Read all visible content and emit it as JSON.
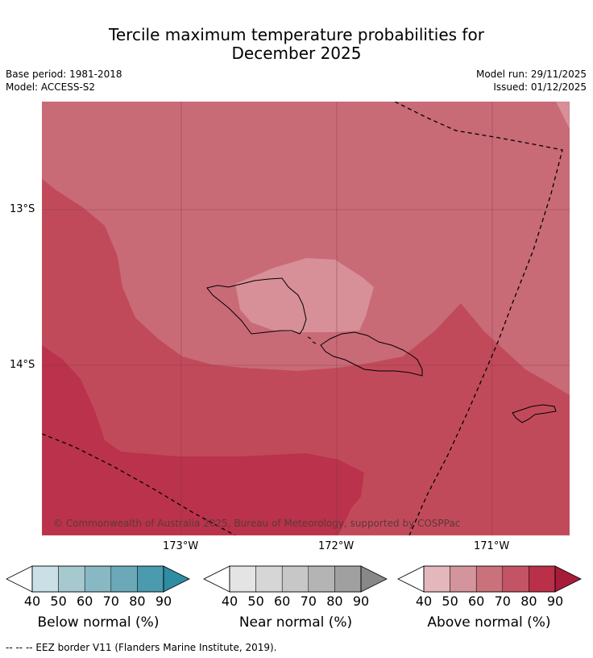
{
  "title_line1": "Tercile maximum temperature probabilities for",
  "title_line2": "December 2025",
  "base_period": "Base period: 1981-2018",
  "model": "Model: ACCESS-S2",
  "model_run": "Model run: 29/11/2025",
  "issued": "Issued: 01/12/2025",
  "credit": "© Commonwealth of Australia 2025, Bureau of Meteorology, supported by COSPPac",
  "map": {
    "lat_labels": [
      "13°S",
      "14°S"
    ],
    "lon_labels": [
      "173°W",
      "172°W",
      "171°W"
    ],
    "regions": [
      {
        "name": "above-normal-50-60",
        "color": "#d78f98"
      },
      {
        "name": "above-normal-60-70",
        "color": "#c96a77"
      },
      {
        "name": "above-normal-70-80",
        "color": "#c14a5a"
      },
      {
        "name": "above-normal-80-90",
        "color": "#ba324b"
      }
    ]
  },
  "colorbars": [
    {
      "label": "Below normal (%)",
      "ticks": [
        "40",
        "50",
        "60",
        "70",
        "80",
        "90"
      ],
      "colors": [
        "#c9e0e6",
        "#a6c9cf",
        "#88b8c4",
        "#6ba9b9",
        "#4b9aad",
        "#2e8ca3"
      ]
    },
    {
      "label": "Near normal (%)",
      "ticks": [
        "40",
        "50",
        "60",
        "70",
        "80",
        "90"
      ],
      "colors": [
        "#e4e4e4",
        "#d6d6d6",
        "#c7c7c7",
        "#b4b4b4",
        "#a0a0a0",
        "#888888"
      ]
    },
    {
      "label": "Above normal (%)",
      "ticks": [
        "40",
        "50",
        "60",
        "70",
        "80",
        "90"
      ],
      "colors": [
        "#e3b7bc",
        "#d4949c",
        "#c9727c",
        "#c35466",
        "#bb3049",
        "#a71c3a"
      ]
    }
  ],
  "footnote": "-- -- -- EEZ border V11 (Flanders Marine Institute, 2019)."
}
